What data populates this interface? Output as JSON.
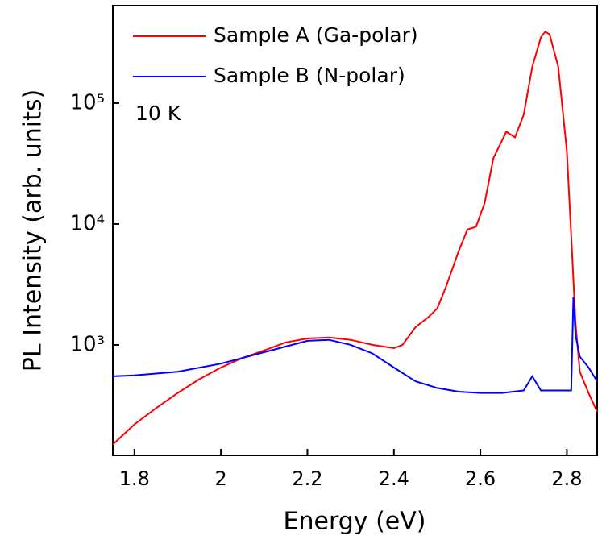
{
  "chart_data": {
    "type": "line",
    "xlabel": "Energy (eV)",
    "ylabel": "PL Intensity (arb. units)",
    "annotation": "10 K",
    "log_y": true,
    "legend": "upper left",
    "xlim": [
      1.75,
      2.87
    ],
    "xticks": [
      1.8,
      2.0,
      2.2,
      2.4,
      2.6,
      2.8
    ],
    "ylim": [
      122,
      640000
    ],
    "yticks": [
      {
        "value": 1000,
        "label": "10³"
      },
      {
        "value": 10000,
        "label": "10⁴"
      },
      {
        "value": 100000,
        "label": "10⁵"
      }
    ],
    "series": [
      {
        "name": "Sample A (Ga-polar)",
        "color": "#ff0000",
        "x": [
          1.75,
          1.8,
          1.85,
          1.9,
          1.95,
          2.0,
          2.05,
          2.1,
          2.15,
          2.2,
          2.25,
          2.3,
          2.35,
          2.4,
          2.42,
          2.45,
          2.48,
          2.5,
          2.52,
          2.55,
          2.57,
          2.59,
          2.61,
          2.63,
          2.66,
          2.68,
          2.7,
          2.72,
          2.74,
          2.75,
          2.76,
          2.78,
          2.8,
          2.81,
          2.82,
          2.83,
          2.85,
          2.87
        ],
        "values": [
          150,
          220,
          300,
          400,
          520,
          650,
          780,
          900,
          1050,
          1130,
          1150,
          1100,
          1000,
          940,
          1000,
          1400,
          1700,
          2000,
          3000,
          6000,
          9000,
          9500,
          15000,
          35000,
          58000,
          52000,
          80000,
          200000,
          350000,
          390000,
          370000,
          200000,
          40000,
          8000,
          1500,
          600,
          400,
          280
        ]
      },
      {
        "name": "Sample B (N-polar)",
        "color": "#0000ff",
        "x": [
          1.75,
          1.8,
          1.9,
          2.0,
          2.1,
          2.2,
          2.25,
          2.3,
          2.35,
          2.4,
          2.45,
          2.5,
          2.55,
          2.6,
          2.65,
          2.7,
          2.72,
          2.74,
          2.8,
          2.81,
          2.815,
          2.82,
          2.83,
          2.85,
          2.87
        ],
        "values": [
          550,
          560,
          600,
          700,
          870,
          1080,
          1100,
          1000,
          850,
          650,
          500,
          440,
          410,
          400,
          400,
          420,
          550,
          420,
          420,
          420,
          2500,
          1200,
          800,
          650,
          500
        ]
      }
    ]
  }
}
